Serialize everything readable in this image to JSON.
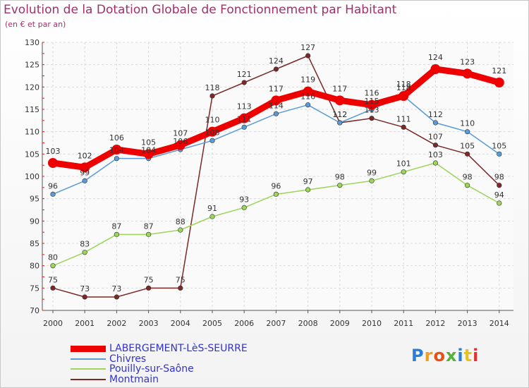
{
  "chart_data": {
    "type": "line",
    "title": "Evolution de la Dotation Globale de Fonctionnement par Habitant",
    "subtitle": "(en € et par an)",
    "xlabel": "",
    "ylabel": "",
    "ylim": [
      70,
      130
    ],
    "yticks": [
      70,
      75,
      80,
      85,
      90,
      95,
      100,
      105,
      110,
      115,
      120,
      125,
      130
    ],
    "grid": true,
    "legend_position": "bottom-left",
    "x": [
      "2000",
      "2001",
      "2002",
      "2003",
      "2004",
      "2005",
      "2006",
      "2007",
      "2008",
      "2009",
      "2010",
      "2011",
      "2012",
      "2013",
      "2014"
    ],
    "series": [
      {
        "name": "LABERGEMENT-LèS-SEURRE",
        "color": "#ee0000",
        "values": [
          103,
          102,
          106,
          105,
          107,
          110,
          113,
          117,
          119,
          117,
          116,
          118,
          124,
          123,
          121
        ]
      },
      {
        "name": "Chivres",
        "color": "#5b9bd5",
        "values": [
          96,
          99,
          104,
          104,
          106,
          108,
          111,
          114,
          116,
          112,
          115,
          118,
          112,
          110,
          105
        ]
      },
      {
        "name": "Pouilly-sur-Saône",
        "color": "#9dd45a",
        "values": [
          80,
          83,
          87,
          87,
          88,
          91,
          93,
          96,
          97,
          98,
          99,
          101,
          103,
          98,
          94
        ]
      },
      {
        "name": "Montmain",
        "color": "#7a2828",
        "values": [
          75,
          73,
          73,
          75,
          75,
          118,
          121,
          124,
          127,
          112,
          113,
          111,
          107,
          105,
          98
        ]
      }
    ]
  },
  "logo": {
    "text": "Proxiti"
  }
}
